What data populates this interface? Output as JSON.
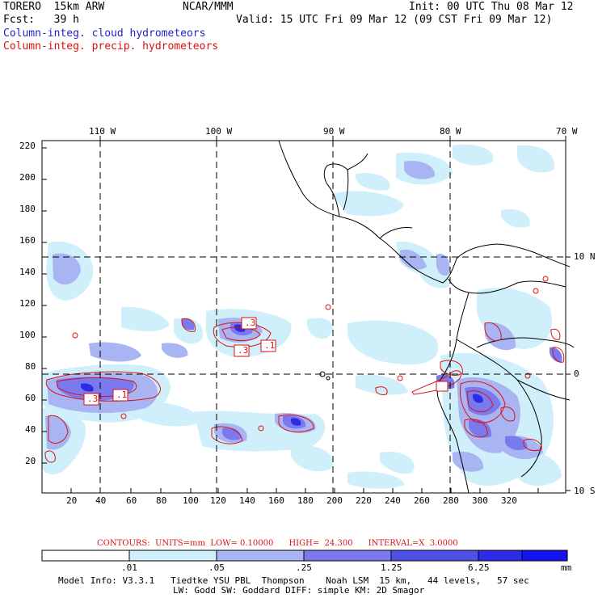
{
  "header": {
    "model": "TORERO  15km ARW",
    "org": "NCAR/MMM",
    "init": "Init: 00 UTC Thu 08 Mar 12",
    "fcst": "Fcst:   39 h",
    "valid": "Valid: 15 UTC Fri 09 Mar 12 (09 CST Fri 09 Mar 12)",
    "field_cloud": "Column-integ. cloud hydrometeors",
    "field_precip": "Column-integ. precip. hydrometeors"
  },
  "colors": {
    "cloud_title": "#2222cc",
    "precip_title": "#dd1111",
    "shade1": "#cfeffa",
    "shade2": "#a9b4f2",
    "shade3": "#7a7aee",
    "shade4": "#5050e8",
    "shade5": "#2c2ce6",
    "shade6": "#1414f0",
    "contour": "#dd1111",
    "coast": "#000000"
  },
  "map": {
    "top_lon_labels": [
      "110 W",
      "100 W",
      "90 W",
      "80 W",
      "70 W"
    ],
    "right_lat_labels": [
      "10 N",
      "0",
      "10 S"
    ],
    "y_ticks": [
      "220",
      "200",
      "180",
      "160",
      "140",
      "120",
      "100",
      "80",
      "60",
      "40",
      "20"
    ],
    "x_ticks": [
      "20",
      "40",
      "60",
      "80",
      "100",
      "120",
      "140",
      "160",
      "180",
      "200",
      "220",
      "240",
      "260",
      "280",
      "300",
      "320"
    ],
    "contour_labels": [
      ".3",
      ".3",
      ".1",
      ".3",
      ".1"
    ]
  },
  "contour_info": {
    "label": "CONTOURS:  UNITS=mm  LOW= 0.10000      HIGH=  24.300      INTERVAL=X  3.0000"
  },
  "colorbar": {
    "labels": [
      ".01",
      ".05",
      ".25",
      "1.25",
      "6.25"
    ],
    "unit": "mm",
    "colors": [
      "#ffffff",
      "#cfeffa",
      "#a9b4f2",
      "#7a7aee",
      "#5050e8",
      "#2c2ce6",
      "#1414f0"
    ]
  },
  "footer": {
    "line1": "Model Info: V3.3.1   Tiedtke YSU PBL  Thompson    Noah LSM  15 km,   44 levels,   57 sec",
    "line2": "LW: Godd SW: Goddard DIFF: simple KM: 2D Smagor"
  }
}
